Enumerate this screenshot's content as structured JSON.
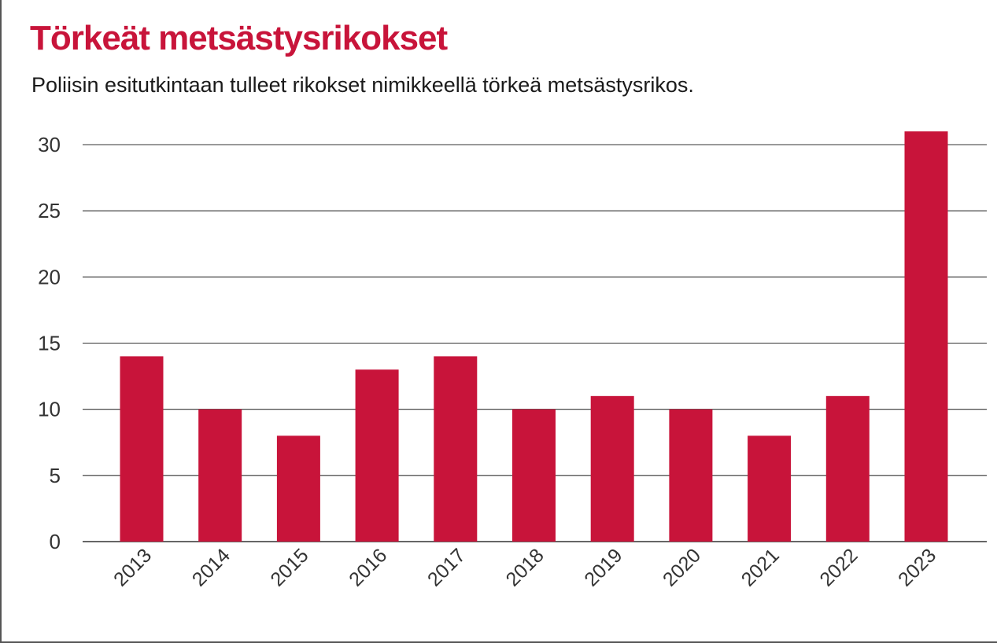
{
  "header": {
    "title": "Törkeät metsästysrikokset",
    "subtitle": "Poliisin esitutkintaan tulleet rikokset nimikkeellä törkeä metsästysrikos."
  },
  "colors": {
    "bar": "#c8143a",
    "title": "#c8143a",
    "grid": "#333333"
  },
  "chart_data": {
    "type": "bar",
    "title": "Törkeät metsästysrikokset",
    "subtitle": "Poliisin esitutkintaan tulleet rikokset nimikkeellä törkeä metsästysrikos.",
    "xlabel": "",
    "ylabel": "",
    "categories": [
      "2013",
      "2014",
      "2015",
      "2016",
      "2017",
      "2018",
      "2019",
      "2020",
      "2021",
      "2022",
      "2023"
    ],
    "values": [
      14,
      10,
      8,
      13,
      14,
      10,
      11,
      10,
      8,
      11,
      31
    ],
    "ylim": [
      0,
      30
    ],
    "yticks": [
      "0",
      "5",
      "10",
      "15",
      "20",
      "25",
      "30"
    ],
    "grid": true,
    "legend": "none"
  }
}
